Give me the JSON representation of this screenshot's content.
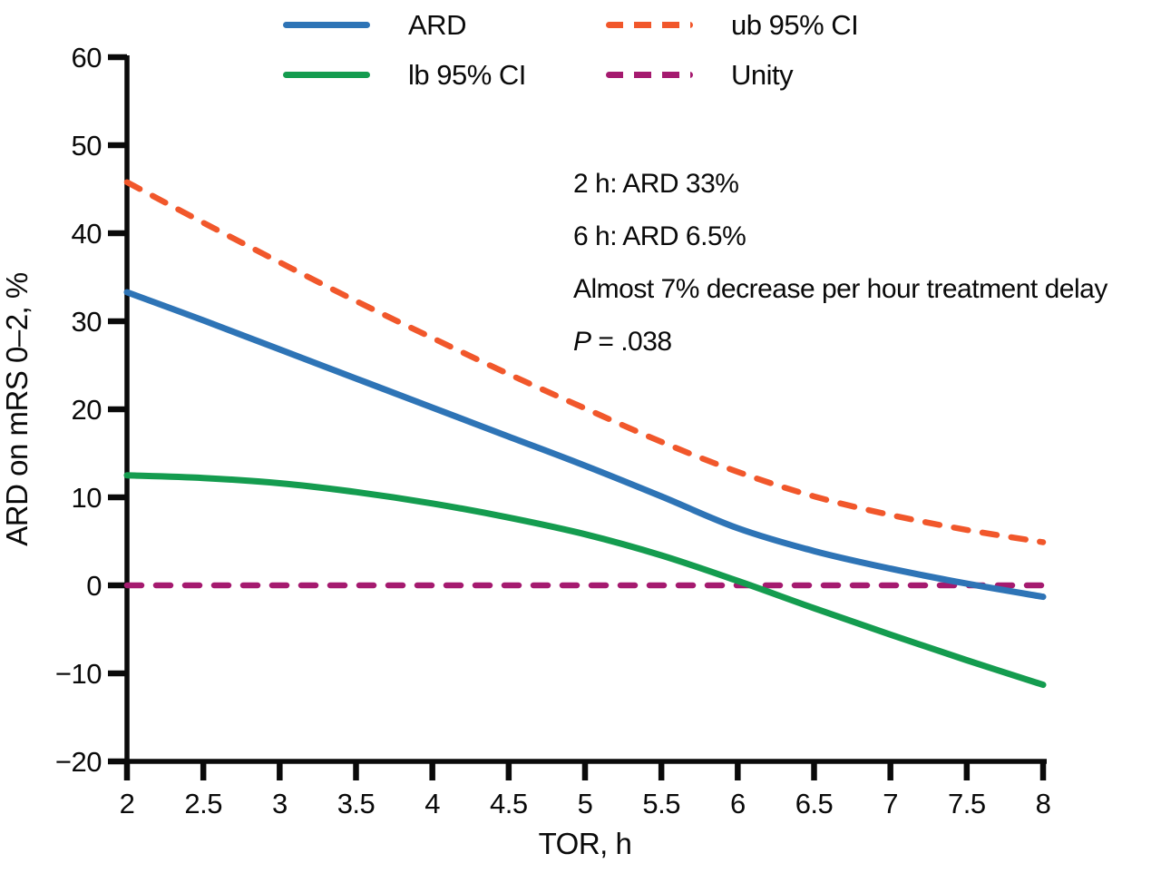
{
  "figure": {
    "background": "#ffffff",
    "text_color": "#0a0a0a",
    "axis_color": "#0a0a0a"
  },
  "legend": {
    "items": [
      {
        "label": "ARD",
        "color": "#2E74B6",
        "style": "solid"
      },
      {
        "label": "ub 95% CI",
        "color": "#F1572B",
        "style": "dashed"
      },
      {
        "label": "lb 95% CI",
        "color": "#149C4F",
        "style": "solid"
      },
      {
        "label": "Unity",
        "color": "#A51A6F",
        "style": "dashed"
      }
    ]
  },
  "annotations": {
    "lines": [
      "2 h: ARD 33%",
      "6 h: ARD 6.5%",
      "Almost 7% decrease per hour treatment delay"
    ],
    "p_line": {
      "italic": "P",
      "rest": " = .038"
    }
  },
  "chart_data": {
    "type": "line",
    "title": "",
    "xlabel": "TOR, h",
    "ylabel": "ARD on mRS 0–2, %",
    "xlim": [
      2,
      8
    ],
    "ylim": [
      -20,
      60
    ],
    "grid": false,
    "legend_position": "top",
    "x_ticks": [
      {
        "v": 2,
        "label": "2"
      },
      {
        "v": 2.5,
        "label": "2.5"
      },
      {
        "v": 3,
        "label": "3"
      },
      {
        "v": 3.5,
        "label": "3.5"
      },
      {
        "v": 4,
        "label": "4"
      },
      {
        "v": 4.5,
        "label": "4.5"
      },
      {
        "v": 5,
        "label": "5"
      },
      {
        "v": 5.5,
        "label": "5.5"
      },
      {
        "v": 6,
        "label": "6"
      },
      {
        "v": 6.5,
        "label": "6.5"
      },
      {
        "v": 7,
        "label": "7"
      },
      {
        "v": 7.5,
        "label": "7.5"
      },
      {
        "v": 8,
        "label": "8"
      }
    ],
    "y_ticks": [
      {
        "v": -20,
        "label": "−20"
      },
      {
        "v": -10,
        "label": "−10"
      },
      {
        "v": 0,
        "label": "0"
      },
      {
        "v": 10,
        "label": "10"
      },
      {
        "v": 20,
        "label": "20"
      },
      {
        "v": 30,
        "label": "30"
      },
      {
        "v": 40,
        "label": "40"
      },
      {
        "v": 50,
        "label": "50"
      },
      {
        "v": 60,
        "label": "60"
      }
    ],
    "x": [
      2,
      2.5,
      3,
      3.5,
      4,
      4.5,
      5,
      5.5,
      6,
      6.5,
      7,
      7.5,
      8
    ],
    "series": [
      {
        "name": "Unity",
        "color": "#A51A6F",
        "style": "dashed",
        "x": [
          2,
          8
        ],
        "values": [
          0,
          0
        ]
      },
      {
        "name": "ub 95% CI",
        "color": "#F1572B",
        "style": "dashed",
        "values": [
          45.8,
          41.2,
          36.7,
          32.3,
          28.1,
          24.0,
          20.1,
          16.3,
          12.9,
          10.1,
          8.0,
          6.3,
          4.9
        ]
      },
      {
        "name": "lb 95% CI",
        "color": "#149C4F",
        "style": "solid",
        "values": [
          12.5,
          12.2,
          11.6,
          10.6,
          9.3,
          7.7,
          5.8,
          3.4,
          0.5,
          -2.6,
          -5.6,
          -8.5,
          -11.3
        ]
      },
      {
        "name": "ARD",
        "color": "#2E74B6",
        "style": "solid",
        "values": [
          33.3,
          30.1,
          26.8,
          23.5,
          20.2,
          16.9,
          13.6,
          10.1,
          6.5,
          3.9,
          1.9,
          0.2,
          -1.3
        ]
      }
    ]
  }
}
